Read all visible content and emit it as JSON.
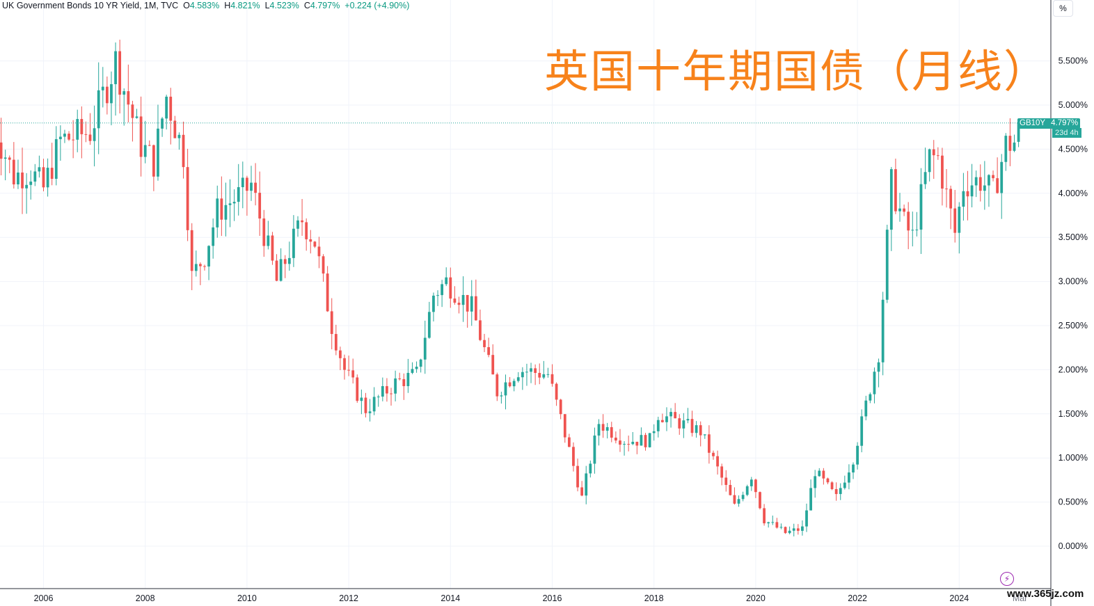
{
  "header": {
    "symbol": "UK Government Bonds 10 YR Yield, 1M, TVC",
    "o_label": "O",
    "o_val": "4.583%",
    "h_label": "H",
    "h_val": "4.821%",
    "l_label": "L",
    "l_val": "4.523%",
    "c_label": "C",
    "c_val": "4.797%",
    "change": "+0.224 (+4.90%)"
  },
  "title_cn": "英国十年期国债（月线）",
  "scale_button": "%",
  "last_price": {
    "symbol": "GB10Y",
    "value": "4.797%",
    "countdown": "23d 4h"
  },
  "watermark": "www.365jz.com",
  "colors": {
    "up": "#26a69a",
    "down": "#ef5350",
    "grid": "#f0f3fa",
    "title": "#f7821b"
  },
  "chart_data": {
    "type": "candlestick",
    "interval": "1M",
    "title": "",
    "xlabel": "",
    "ylabel": "",
    "ylim": [
      -0.2,
      6.0
    ],
    "y_ticks": [
      "0.000%",
      "0.500%",
      "1.000%",
      "1.500%",
      "2.000%",
      "2.500%",
      "3.000%",
      "3.500%",
      "4.000%",
      "4.500%",
      "5.000%",
      "5.500%"
    ],
    "x_ticks": [
      "2006",
      "2008",
      "2010",
      "2012",
      "2014",
      "2016",
      "2018",
      "2020",
      "2022",
      "2024",
      "Mar"
    ],
    "last_value": 4.797,
    "keypoints": [
      [
        "2005-01",
        4.8
      ],
      [
        "2005-06",
        4.2
      ],
      [
        "2005-10",
        4.25
      ],
      [
        "2006-01",
        4.05
      ],
      [
        "2006-05",
        4.6
      ],
      [
        "2006-12",
        4.7
      ],
      [
        "2007-06",
        5.5
      ],
      [
        "2007-12",
        4.55
      ],
      [
        "2008-03",
        4.35
      ],
      [
        "2008-06",
        5.1
      ],
      [
        "2008-10",
        4.45
      ],
      [
        "2008-12",
        3.05
      ],
      [
        "2009-03",
        3.3
      ],
      [
        "2009-06",
        3.8
      ],
      [
        "2009-12",
        4.0
      ],
      [
        "2010-02",
        4.1
      ],
      [
        "2010-08",
        3.0
      ],
      [
        "2011-02",
        3.7
      ],
      [
        "2011-05",
        3.45
      ],
      [
        "2011-09",
        2.5
      ],
      [
        "2011-12",
        2.0
      ],
      [
        "2012-05",
        1.55
      ],
      [
        "2012-12",
        1.85
      ],
      [
        "2013-05",
        1.95
      ],
      [
        "2013-09",
        2.85
      ],
      [
        "2013-12",
        3.0
      ],
      [
        "2014-06",
        2.7
      ],
      [
        "2014-12",
        1.75
      ],
      [
        "2015-05",
        2.0
      ],
      [
        "2015-12",
        1.95
      ],
      [
        "2016-03",
        1.45
      ],
      [
        "2016-08",
        0.55
      ],
      [
        "2016-12",
        1.4
      ],
      [
        "2017-06",
        1.2
      ],
      [
        "2017-12",
        1.2
      ],
      [
        "2018-02",
        1.5
      ],
      [
        "2018-12",
        1.3
      ],
      [
        "2019-08",
        0.45
      ],
      [
        "2019-12",
        0.8
      ],
      [
        "2020-03",
        0.3
      ],
      [
        "2020-08",
        0.15
      ],
      [
        "2020-12",
        0.2
      ],
      [
        "2021-03",
        0.85
      ],
      [
        "2021-08",
        0.55
      ],
      [
        "2021-12",
        1.0
      ],
      [
        "2022-06",
        2.2
      ],
      [
        "2022-09",
        4.1
      ],
      [
        "2022-12",
        3.65
      ],
      [
        "2023-02",
        3.5
      ],
      [
        "2023-06",
        4.4
      ],
      [
        "2023-08",
        4.4
      ],
      [
        "2023-12",
        3.55
      ],
      [
        "2024-02",
        4.1
      ],
      [
        "2024-06",
        4.15
      ],
      [
        "2024-09",
        4.0
      ],
      [
        "2024-12",
        4.55
      ],
      [
        "2025-02",
        4.58
      ],
      [
        "2025-03",
        4.8
      ]
    ]
  }
}
